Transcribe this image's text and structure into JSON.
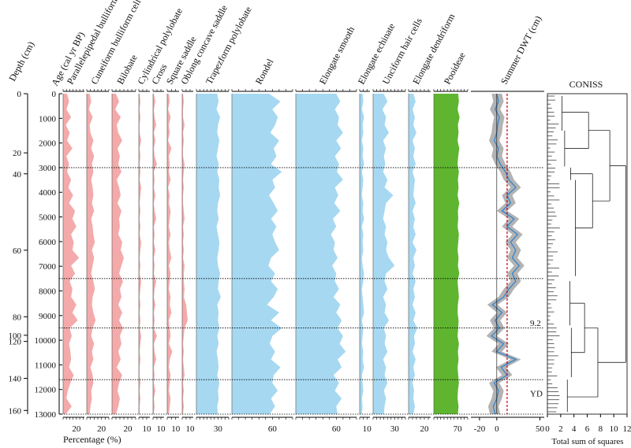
{
  "chart_data": {
    "type": "area",
    "header_labels": {
      "depth": "Depth (cm)",
      "age": "Age (cal yr BP)",
      "coniss": "CONISS"
    },
    "xlabel": "Percentage (%)",
    "coniss_xlabel": "Total sum of squares",
    "age_axis": {
      "range": [
        0,
        13000
      ],
      "ticks": [
        0,
        1000,
        2000,
        3000,
        4000,
        5000,
        6000,
        7000,
        8000,
        9000,
        10000,
        11000,
        12000,
        13000
      ],
      "tick_labels": [
        "0",
        "1000",
        "2000",
        "3000",
        "4000",
        "5000",
        "6000",
        "7000",
        "8000",
        "9000",
        "10000",
        "11000",
        "12000",
        "13000"
      ]
    },
    "depth_axis": {
      "ticks": [
        {
          "label": "0",
          "age": 0
        },
        {
          "label": "20",
          "age": 2400
        },
        {
          "label": "40",
          "age": 3250
        },
        {
          "label": "60",
          "age": 6350
        },
        {
          "label": "80",
          "age": 9050
        },
        {
          "label": "100",
          "age": 9800
        },
        {
          "label": "120",
          "age": 10050
        },
        {
          "label": "140",
          "age": 11550
        },
        {
          "label": "160",
          "age": 12850
        }
      ]
    },
    "zone_boundaries": [
      3000,
      7500,
      9500,
      11600
    ],
    "annotations": [
      {
        "text": "9.2",
        "age": 9300
      },
      {
        "text": "YD",
        "age": 12150
      }
    ],
    "series": [
      {
        "name": "Parallelepipedal bulliform cell",
        "color": "#f4aaaa",
        "axis_ticks": [
          {
            "v": 20,
            "label": "20"
          }
        ],
        "xmax": 32,
        "values": [
          6,
          9,
          5,
          12,
          4,
          10,
          6,
          14,
          5,
          9,
          6,
          12,
          8,
          15,
          9,
          18,
          14,
          20,
          12,
          16,
          14,
          24,
          12,
          18,
          10,
          14,
          12,
          20,
          14,
          22,
          10,
          13,
          9,
          11,
          12,
          9,
          16,
          11,
          7,
          5,
          13,
          4
        ]
      },
      {
        "name": "Cuneiform bulliform cell",
        "color": "#f4aaaa",
        "axis_ticks": [
          {
            "v": 20,
            "label": "20"
          }
        ],
        "xmax": 30,
        "values": [
          4,
          6,
          3,
          8,
          4,
          5,
          9,
          6,
          10,
          7,
          9,
          6,
          8,
          9,
          7,
          10,
          6,
          8,
          9,
          11,
          7,
          10,
          8,
          6,
          9,
          11,
          8,
          7,
          9,
          12,
          8,
          6,
          10,
          7,
          9,
          5,
          8,
          9,
          6,
          7,
          5,
          4
        ]
      },
      {
        "name": "Bilobate",
        "color": "#f4aaaa",
        "axis_ticks": [
          {
            "v": 20,
            "label": "20"
          }
        ],
        "xmax": 30,
        "values": [
          5,
          9,
          4,
          11,
          6,
          8,
          13,
          7,
          10,
          8,
          12,
          6,
          9,
          11,
          7,
          12,
          9,
          10,
          8,
          13,
          11,
          15,
          12,
          9,
          14,
          10,
          12,
          8,
          13,
          9,
          14,
          10,
          12,
          8,
          11,
          6,
          13,
          9,
          7,
          10,
          8,
          5
        ]
      },
      {
        "name": "Cylindrical polylobate",
        "color": "#f4aaaa",
        "axis_ticks": [
          {
            "v": 10,
            "label": "10"
          }
        ],
        "xmax": 14,
        "values": [
          1,
          2,
          1,
          2,
          1,
          1,
          3,
          1,
          2,
          1,
          2,
          1,
          3,
          2,
          1,
          2,
          1,
          2,
          1,
          3,
          2,
          1,
          2,
          1,
          3,
          2,
          1,
          2,
          1,
          2,
          1,
          3,
          2,
          1,
          2,
          1,
          1,
          2,
          1,
          2,
          1,
          1
        ]
      },
      {
        "name": "Cross",
        "color": "#f4aaaa",
        "axis_ticks": [
          {
            "v": 10,
            "label": "10"
          }
        ],
        "xmax": 14,
        "values": [
          1,
          3,
          1,
          2,
          4,
          1,
          3,
          1,
          2,
          5,
          1,
          2,
          1,
          3,
          1,
          2,
          4,
          1,
          2,
          1,
          3,
          1,
          2,
          1,
          4,
          2,
          1,
          3,
          1,
          2,
          1,
          5,
          1,
          2,
          4,
          1,
          2,
          1,
          3,
          1,
          2,
          1
        ]
      },
      {
        "name": "Square saddle",
        "color": "#f4aaaa",
        "axis_ticks": [
          {
            "v": 10,
            "label": "10"
          }
        ],
        "xmax": 14,
        "values": [
          2,
          3,
          1,
          4,
          2,
          3,
          1,
          5,
          2,
          3,
          2,
          4,
          1,
          3,
          2,
          4,
          3,
          2,
          4,
          2,
          3,
          5,
          2,
          4,
          3,
          2,
          4,
          3,
          5,
          2,
          3,
          4,
          2,
          6,
          3,
          2,
          4,
          3,
          2,
          4,
          3,
          2
        ]
      },
      {
        "name": "Oblong concave saddle",
        "color": "#f4aaaa",
        "axis_ticks": [
          {
            "v": 10,
            "label": "10"
          }
        ],
        "xmax": 14,
        "values": [
          1,
          2,
          1,
          1,
          3,
          1,
          2,
          1,
          1,
          3,
          2,
          1,
          2,
          1,
          1,
          2,
          3,
          1,
          2,
          1,
          2,
          1,
          3,
          2,
          2,
          3,
          2,
          5,
          6,
          7,
          3,
          2,
          1,
          2,
          1,
          2,
          3,
          1,
          2,
          1,
          2,
          1
        ]
      },
      {
        "name": "Trapezform polylobate",
        "color": "#a6d8f1",
        "axis_ticks": [
          {
            "v": 30,
            "label": "30"
          }
        ],
        "xmax": 45,
        "values": [
          29,
          31,
          28,
          33,
          30,
          29,
          32,
          30,
          28,
          31,
          29,
          32,
          31,
          33,
          30,
          29,
          31,
          28,
          30,
          32,
          31,
          29,
          30,
          33,
          31,
          30,
          34,
          29,
          31,
          30,
          32,
          29,
          31,
          28,
          30,
          31,
          29,
          32,
          30,
          31,
          29,
          30
        ]
      },
      {
        "name": "Rondel",
        "color": "#a6d8f1",
        "axis_ticks": [
          {
            "v": 60,
            "label": "60"
          }
        ],
        "xmax": 90,
        "values": [
          55,
          72,
          60,
          68,
          64,
          57,
          70,
          62,
          66,
          58,
          74,
          60,
          64,
          55,
          62,
          68,
          58,
          66,
          60,
          64,
          70,
          58,
          54,
          64,
          58,
          68,
          62,
          52,
          70,
          58,
          74,
          60,
          56,
          64,
          58,
          72,
          62,
          60,
          68,
          58,
          64,
          56
        ]
      },
      {
        "name": "Elongate smooth",
        "color": "#a6d8f1",
        "axis_ticks": [
          {
            "v": 60,
            "label": "60"
          }
        ],
        "xmax": 90,
        "values": [
          60,
          66,
          58,
          64,
          62,
          70,
          60,
          67,
          58,
          64,
          61,
          70,
          58,
          63,
          57,
          66,
          55,
          60,
          52,
          58,
          56,
          62,
          54,
          60,
          58,
          64,
          56,
          66,
          60,
          68,
          62,
          70,
          65,
          74,
          62,
          68,
          56,
          64,
          58,
          68,
          60,
          62
        ]
      },
      {
        "name": "Elongate echinate",
        "color": "#a6d8f1",
        "axis_ticks": [
          {
            "v": 10,
            "label": "10"
          }
        ],
        "xmax": 14,
        "values": [
          4,
          5,
          3,
          6,
          4,
          5,
          3,
          5,
          4,
          6,
          3,
          5,
          4,
          3,
          5,
          4,
          6,
          3,
          5,
          4,
          5,
          3,
          4,
          6,
          5,
          3,
          4,
          5,
          6,
          3,
          5,
          4,
          3,
          5,
          4,
          6,
          3,
          4,
          5,
          3,
          4,
          3
        ]
      },
      {
        "name": "Unciform hair cells",
        "color": "#a6d8f1",
        "axis_ticks": [
          {
            "v": 30,
            "label": "30"
          }
        ],
        "xmax": 45,
        "values": [
          15,
          20,
          13,
          18,
          16,
          22,
          14,
          18,
          15,
          17,
          14,
          20,
          16,
          28,
          18,
          16,
          14,
          18,
          16,
          20,
          18,
          22,
          30,
          18,
          16,
          20,
          14,
          18,
          16,
          22,
          15,
          18,
          16,
          20,
          14,
          18,
          16,
          20,
          15,
          18,
          16,
          15
        ]
      },
      {
        "name": "Elongate dendriform",
        "color": "#a6d8f1",
        "axis_ticks": [
          {
            "v": 20,
            "label": "20"
          }
        ],
        "xmax": 28,
        "values": [
          6,
          9,
          5,
          8,
          6,
          10,
          5,
          8,
          6,
          9,
          5,
          8,
          7,
          6,
          9,
          5,
          8,
          6,
          9,
          5,
          10,
          6,
          8,
          5,
          9,
          6,
          8,
          5,
          9,
          6,
          11,
          7,
          8,
          5,
          9,
          6,
          8,
          5,
          7,
          6,
          8,
          6
        ]
      },
      {
        "name": "Pooideae",
        "color": "#5fb52f",
        "axis_ticks": [
          {
            "v": 70,
            "label": "70"
          }
        ],
        "xmax": 100,
        "values": [
          72,
          74,
          70,
          76,
          71,
          73,
          70,
          75,
          72,
          70,
          74,
          71,
          73,
          70,
          75,
          71,
          72,
          70,
          74,
          72,
          70,
          73,
          71,
          75,
          70,
          72,
          74,
          71,
          70,
          73,
          72,
          70,
          74,
          71,
          73,
          70,
          72,
          74,
          71,
          70,
          73,
          71
        ]
      },
      {
        "name": "Summer DWT (cm)",
        "type": "line_band",
        "line_color": "#2b83d4",
        "band_color": "#b3b3b3",
        "ref_color": "#c0001a",
        "ref_value": 12,
        "axis_ticks": [
          {
            "v": -20,
            "label": "-20"
          },
          {
            "v": 0,
            "label": "0"
          },
          {
            "v": 50,
            "label": "50"
          }
        ],
        "xmin": -30,
        "xmax": 55,
        "values": [
          0,
          2,
          -2,
          3,
          1,
          0,
          -3,
          2,
          0,
          4,
          10,
          14,
          22,
          12,
          16,
          6,
          20,
          12,
          24,
          16,
          22,
          18,
          26,
          18,
          22,
          14,
          8,
          -5,
          6,
          -2,
          3,
          -6,
          8,
          0,
          22,
          5,
          12,
          -3,
          2,
          0,
          -4,
          -2
        ]
      }
    ],
    "coniss": {
      "axis_ticks": [
        0,
        2,
        4,
        6,
        8,
        10,
        12
      ],
      "axis_labels": [
        "0",
        "2",
        "4",
        "6",
        "8",
        "10",
        "12"
      ],
      "xlim": [
        0,
        12
      ]
    }
  }
}
